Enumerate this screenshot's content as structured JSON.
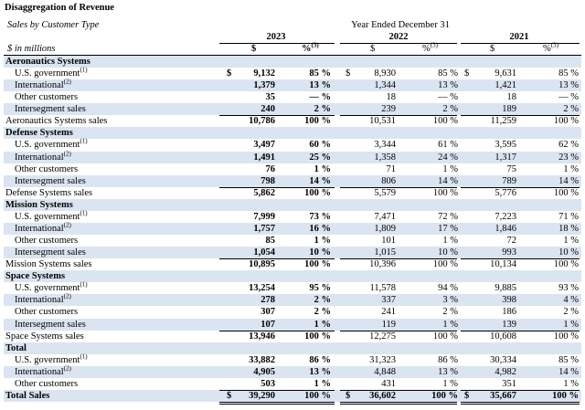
{
  "header": {
    "title": "Disaggregation of Revenue",
    "subtitle": "Sales by Customer Type",
    "period": "Year Ended December 31",
    "years": [
      "2023",
      "2022",
      "2021"
    ],
    "unit": "$ in millions",
    "dollar_header": "$",
    "pct_header": "%",
    "pct_note": "(3)"
  },
  "sections": [
    {
      "title": "Aeronautics Systems",
      "items": [
        {
          "label": "U.S. government",
          "note": "(1)",
          "currency": "$",
          "values": [
            "9,132",
            "85 %",
            "8,930",
            "85 %",
            "9,631",
            "85 %"
          ]
        },
        {
          "label": "International",
          "note": "(2)",
          "values": [
            "1,379",
            "13 %",
            "1,344",
            "13 %",
            "1,421",
            "13 %"
          ]
        },
        {
          "label": "Other customers",
          "values": [
            "35",
            "— %",
            "18",
            "— %",
            "18",
            "— %"
          ]
        },
        {
          "label": "Intersegment sales",
          "values": [
            "240",
            "2 %",
            "239",
            "2 %",
            "189",
            "2 %"
          ]
        }
      ],
      "total": {
        "label": "Aeronautics Systems sales",
        "values": [
          "10,786",
          "100 %",
          "10,531",
          "100 %",
          "11,259",
          "100 %"
        ]
      }
    },
    {
      "title": "Defense Systems",
      "items": [
        {
          "label": "U.S. government",
          "note": "(1)",
          "values": [
            "3,497",
            "60 %",
            "3,344",
            "61 %",
            "3,595",
            "62 %"
          ]
        },
        {
          "label": "International",
          "note": "(2)",
          "values": [
            "1,491",
            "25 %",
            "1,358",
            "24 %",
            "1,317",
            "23 %"
          ]
        },
        {
          "label": "Other customers",
          "values": [
            "76",
            "1 %",
            "71",
            "1 %",
            "75",
            "1 %"
          ]
        },
        {
          "label": "Intersegment sales",
          "values": [
            "798",
            "14 %",
            "806",
            "14 %",
            "789",
            "14 %"
          ]
        }
      ],
      "total": {
        "label": "Defense Systems sales",
        "values": [
          "5,862",
          "100 %",
          "5,579",
          "100 %",
          "5,776",
          "100 %"
        ]
      }
    },
    {
      "title": "Mission Systems",
      "items": [
        {
          "label": "U.S. government",
          "note": "(1)",
          "values": [
            "7,999",
            "73 %",
            "7,471",
            "72 %",
            "7,223",
            "71 %"
          ]
        },
        {
          "label": "International",
          "note": "(2)",
          "values": [
            "1,757",
            "16 %",
            "1,809",
            "17 %",
            "1,846",
            "18 %"
          ]
        },
        {
          "label": "Other customers",
          "values": [
            "85",
            "1 %",
            "101",
            "1 %",
            "72",
            "1 %"
          ]
        },
        {
          "label": "Intersegment sales",
          "values": [
            "1,054",
            "10 %",
            "1,015",
            "10 %",
            "993",
            "10 %"
          ]
        }
      ],
      "total": {
        "label": "Mission Systems sales",
        "values": [
          "10,895",
          "100 %",
          "10,396",
          "100 %",
          "10,134",
          "100 %"
        ]
      }
    },
    {
      "title": "Space Systems",
      "items": [
        {
          "label": "U.S. government",
          "note": "(1)",
          "values": [
            "13,254",
            "95 %",
            "11,578",
            "94 %",
            "9,885",
            "93 %"
          ]
        },
        {
          "label": "International",
          "note": "(2)",
          "values": [
            "278",
            "2 %",
            "337",
            "3 %",
            "398",
            "4 %"
          ]
        },
        {
          "label": "Other customers",
          "values": [
            "307",
            "2 %",
            "241",
            "2 %",
            "186",
            "2 %"
          ]
        },
        {
          "label": "Intersegment sales",
          "values": [
            "107",
            "1 %",
            "119",
            "1 %",
            "139",
            "1 %"
          ]
        }
      ],
      "total": {
        "label": "Space Systems sales",
        "values": [
          "13,946",
          "100 %",
          "12,275",
          "100 %",
          "10,608",
          "100 %"
        ]
      }
    },
    {
      "title": "Total",
      "items": [
        {
          "label": "U.S. government",
          "note": "(1)",
          "values": [
            "33,882",
            "86 %",
            "31,323",
            "86 %",
            "30,334",
            "85 %"
          ]
        },
        {
          "label": "International",
          "note": "(2)",
          "values": [
            "4,905",
            "13 %",
            "4,848",
            "13 %",
            "4,982",
            "14 %"
          ]
        },
        {
          "label": "Other customers",
          "values": [
            "503",
            "1 %",
            "431",
            "1 %",
            "351",
            "1 %"
          ]
        }
      ],
      "total": {
        "label": "Total Sales",
        "currency": "$",
        "values": [
          "39,290",
          "100 %",
          "36,602",
          "100 %",
          "35,667",
          "100 %"
        ]
      }
    }
  ]
}
